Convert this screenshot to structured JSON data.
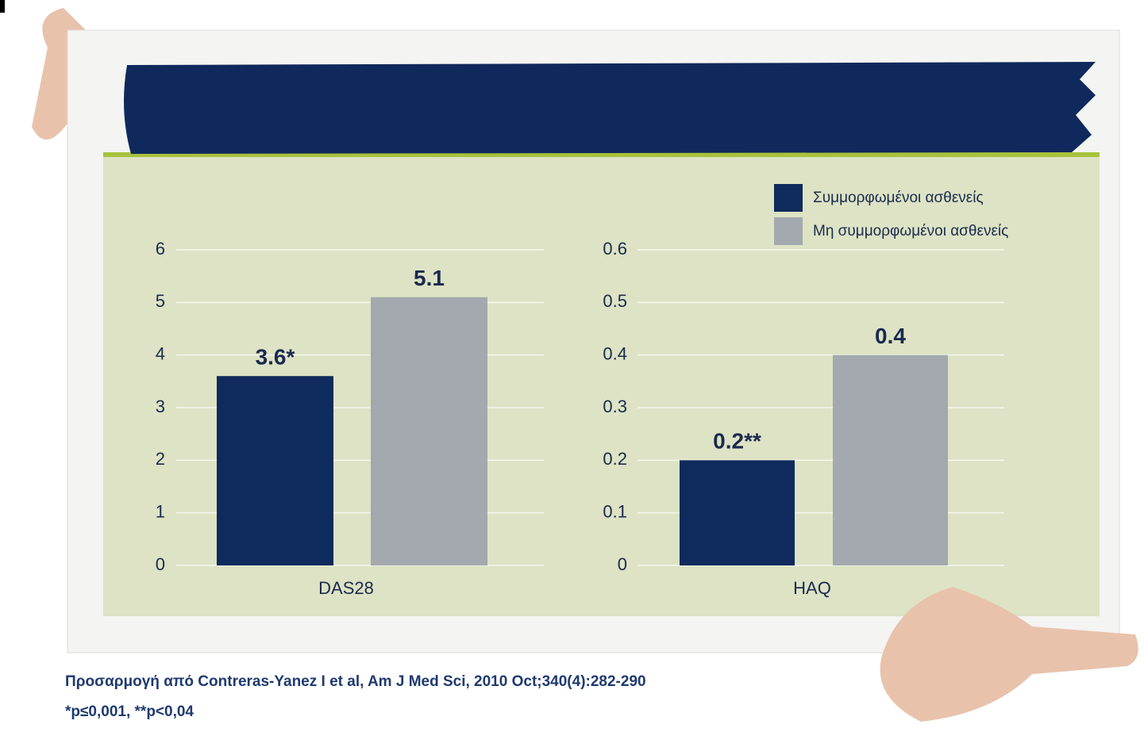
{
  "chart_data": [
    {
      "type": "bar",
      "categories": [
        "DAS28"
      ],
      "series": [
        {
          "color": "#0f2a5c",
          "values": [
            3.6
          ],
          "value_labels": [
            "3.6*"
          ]
        },
        {
          "color": "#a3a9ae",
          "values": [
            5.1
          ]
        }
      ],
      "ylim": [
        0,
        6
      ],
      "yticks": [
        0,
        1,
        2,
        3,
        4,
        5,
        6
      ],
      "grid": true
    },
    {
      "type": "bar",
      "categories": [
        "HAQ"
      ],
      "series": [
        {
          "name": "Συμμορφωμένοι ασθενείς",
          "color": "#0f2a5c",
          "values": [
            0.2
          ],
          "value_labels": [
            "0.2**"
          ]
        },
        {
          "name": "Μη συμμορφωμένοι ασθενείς",
          "color": "#a3a9ae",
          "values": [
            0.4
          ]
        }
      ],
      "ylim": [
        0,
        0.6
      ],
      "yticks": [
        0,
        0.1,
        0.2,
        0.3,
        0.4,
        0.5,
        0.6
      ],
      "grid": true,
      "legend": "top-right"
    }
  ],
  "notes": [
    "Προσαρμογή από Contreras-Yanez I et al, Am J Med Sci, 2010 Oct;340(4):282-290",
    "*p≤0,001, **p<0,04"
  ]
}
